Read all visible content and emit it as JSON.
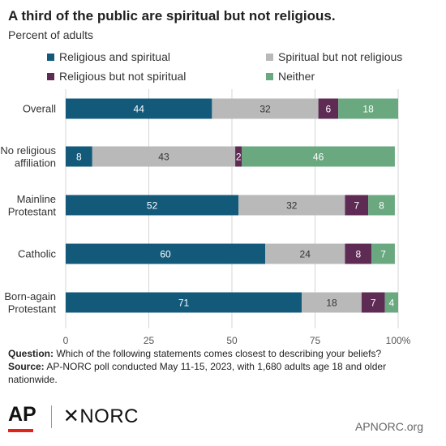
{
  "title": "A third of the public are spiritual but not religious.",
  "subtitle": "Percent of adults",
  "chart_data": {
    "type": "bar",
    "orientation": "horizontal",
    "stacked": true,
    "categories": [
      [
        "Overall"
      ],
      [
        "No religious",
        "affiliation"
      ],
      [
        "Mainline",
        "Protestant"
      ],
      [
        "Catholic"
      ],
      [
        "Born-again",
        "Protestant"
      ]
    ],
    "series": [
      {
        "name": "Religious and spiritual",
        "color": "#135a7a",
        "values": [
          44,
          8,
          52,
          60,
          71
        ]
      },
      {
        "name": "Spiritual but not religious",
        "color": "#b9b9b9",
        "values": [
          32,
          43,
          32,
          24,
          18
        ]
      },
      {
        "name": "Religious but not spiritual",
        "color": "#5e2b55",
        "values": [
          6,
          2,
          7,
          8,
          7
        ]
      },
      {
        "name": "Neither",
        "color": "#6aa880",
        "values": [
          18,
          46,
          8,
          7,
          4
        ]
      }
    ],
    "xlim": [
      0,
      100
    ],
    "xticks": [
      "0",
      "25",
      "50",
      "75",
      "100%"
    ],
    "grid": true,
    "legend": "top"
  },
  "notes": {
    "question_label": "Question:",
    "question_text": " Which of the following statements comes closest to describing your beliefs?",
    "source_label": "Source:",
    "source_text": " AP-NORC poll conducted May 11-15, 2023, with 1,680 adults age 18 and older nationwide."
  },
  "logos": {
    "ap": "AP",
    "norc": "✕NORC"
  },
  "site": "APNORC.org"
}
